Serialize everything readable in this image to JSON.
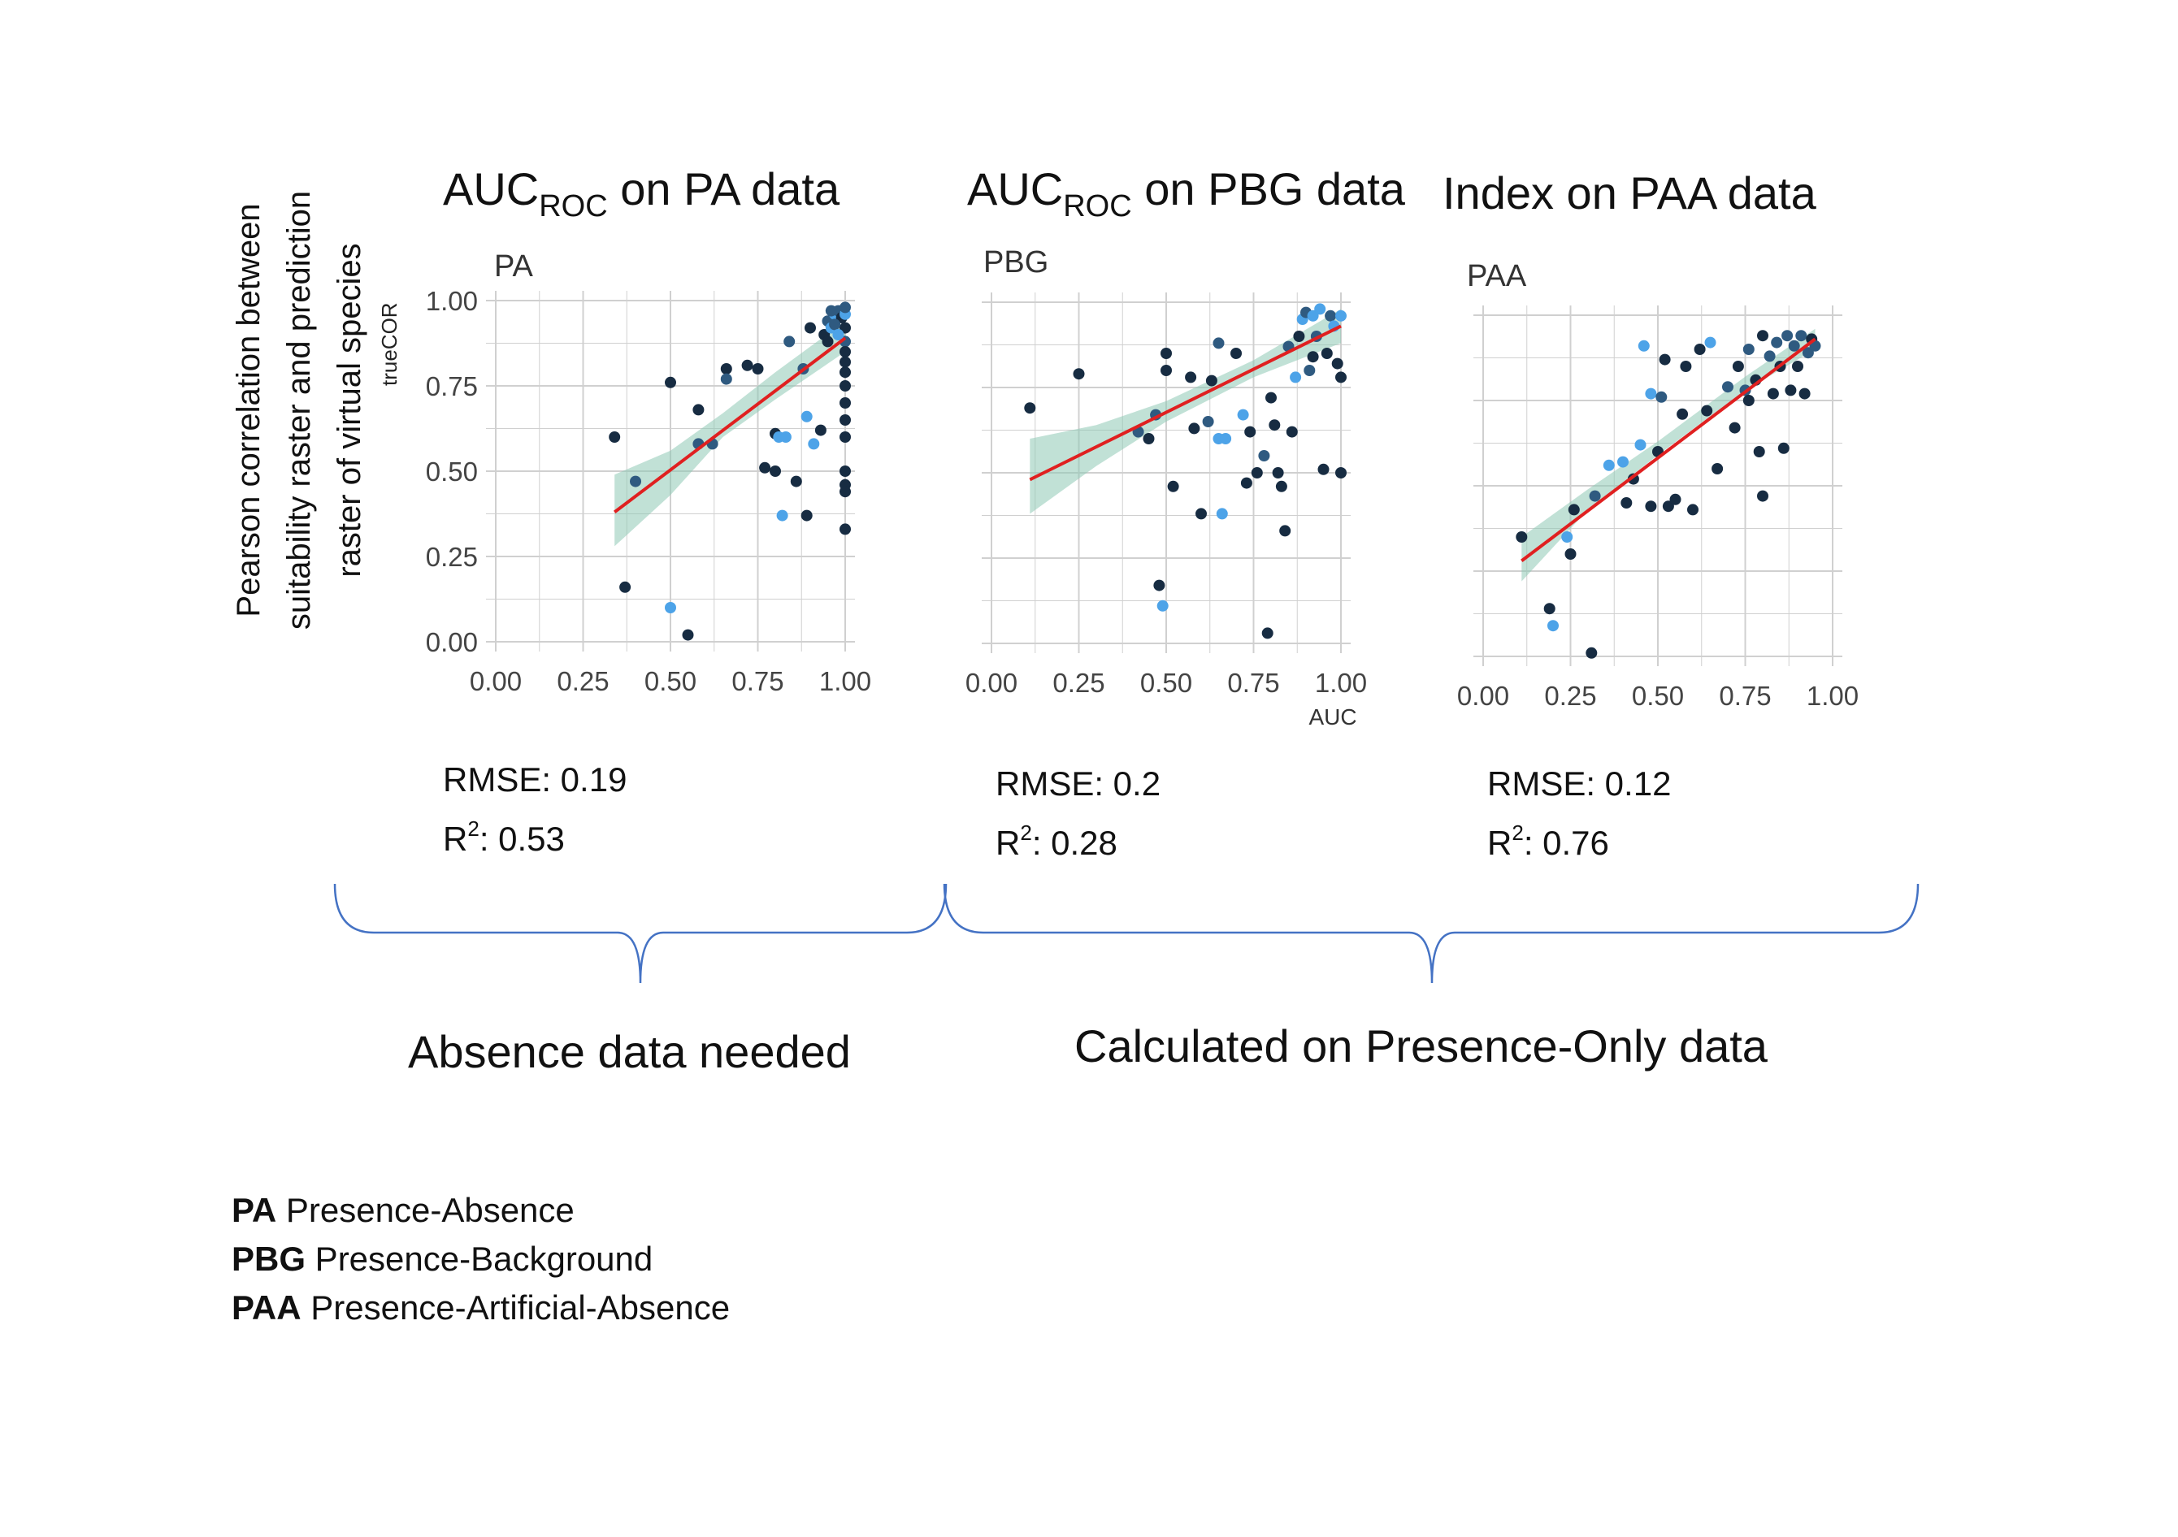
{
  "headings": [
    {
      "main": "AUC",
      "sub": "ROC",
      "rest": " on PA data"
    },
    {
      "main": "AUC",
      "sub": "ROC",
      "rest": " on PBG data"
    },
    {
      "main": "Index on PAA data",
      "sub": "",
      "rest": ""
    }
  ],
  "y_axis_title": {
    "line1": "Pearson correlation between",
    "line2": "suitability raster and prediction",
    "line3": "raster of virtual species"
  },
  "stats": [
    {
      "rmse": "RMSE: 0.19",
      "r2_prefix": "R",
      "r2_sup": "2",
      "r2_rest": ": 0.53"
    },
    {
      "rmse": "RMSE: 0.2",
      "r2_prefix": "R",
      "r2_sup": "2",
      "r2_rest": ": 0.28"
    },
    {
      "rmse": "RMSE: 0.12",
      "r2_prefix": "R",
      "r2_sup": "2",
      "r2_rest": ": 0.76"
    }
  ],
  "groups": [
    {
      "label": "Absence data needed"
    },
    {
      "label": "Calculated on Presence-Only data"
    }
  ],
  "legend": [
    {
      "abbr": "PA",
      "desc": " Presence-Absence"
    },
    {
      "abbr": "PBG",
      "desc": " Presence-Background"
    },
    {
      "abbr": "PAA",
      "desc": " Presence-Artificial-Absence"
    }
  ],
  "colors": {
    "grid": "#d0d0d0",
    "fit": "#e02020",
    "band": "#8ec8b4",
    "dark": "#172c42",
    "mid": "#2f5a80",
    "light": "#4da3e8",
    "brace": "#4472c4",
    "tick": "#444444"
  },
  "chart_data": [
    {
      "type": "scatter",
      "title": "PA",
      "xlabel": "",
      "ylabel": "trueCOR",
      "xlim": [
        0,
        1
      ],
      "ylim": [
        0,
        1
      ],
      "xticks": [
        "0.00",
        "0.25",
        "0.50",
        "0.75",
        "1.00"
      ],
      "yticks": [
        "0.00",
        "0.25",
        "0.50",
        "0.75",
        "1.00"
      ],
      "grid": true,
      "show_y_tick_labels": true,
      "fit": {
        "x": [
          0.34,
          1.0
        ],
        "y": [
          0.38,
          0.89
        ]
      },
      "band": [
        [
          0.34,
          0.28,
          0.49
        ],
        [
          0.5,
          0.43,
          0.56
        ],
        [
          0.65,
          0.6,
          0.67
        ],
        [
          0.8,
          0.71,
          0.79
        ],
        [
          1.0,
          0.85,
          0.94
        ]
      ],
      "points": [
        [
          0.34,
          0.6,
          0
        ],
        [
          0.37,
          0.16,
          0
        ],
        [
          0.4,
          0.47,
          1
        ],
        [
          0.5,
          0.76,
          0
        ],
        [
          0.5,
          0.1,
          2
        ],
        [
          0.55,
          0.02,
          0
        ],
        [
          0.58,
          0.58,
          1
        ],
        [
          0.58,
          0.68,
          0
        ],
        [
          0.62,
          0.58,
          1
        ],
        [
          0.66,
          0.8,
          0
        ],
        [
          0.66,
          0.77,
          1
        ],
        [
          0.72,
          0.81,
          0
        ],
        [
          0.75,
          0.8,
          0
        ],
        [
          0.77,
          0.51,
          0
        ],
        [
          0.8,
          0.61,
          0
        ],
        [
          0.8,
          0.5,
          0
        ],
        [
          0.81,
          0.6,
          2
        ],
        [
          0.82,
          0.37,
          2
        ],
        [
          0.83,
          0.6,
          2
        ],
        [
          0.84,
          0.88,
          1
        ],
        [
          0.86,
          0.47,
          0
        ],
        [
          0.88,
          0.8,
          1
        ],
        [
          0.89,
          0.66,
          2
        ],
        [
          0.89,
          0.37,
          0
        ],
        [
          0.9,
          0.92,
          0
        ],
        [
          0.91,
          0.58,
          2
        ],
        [
          0.93,
          0.62,
          0
        ],
        [
          0.94,
          0.9,
          0
        ],
        [
          0.95,
          0.94,
          1
        ],
        [
          0.96,
          0.92,
          2
        ],
        [
          0.97,
          0.96,
          2
        ],
        [
          0.98,
          0.97,
          1
        ],
        [
          0.99,
          0.95,
          0
        ],
        [
          1.0,
          0.96,
          2
        ],
        [
          1.0,
          0.98,
          1
        ],
        [
          1.0,
          0.92,
          0
        ],
        [
          1.0,
          0.88,
          1
        ],
        [
          1.0,
          0.85,
          0
        ],
        [
          1.0,
          0.82,
          0
        ],
        [
          1.0,
          0.79,
          0
        ],
        [
          1.0,
          0.75,
          0
        ],
        [
          1.0,
          0.7,
          0
        ],
        [
          1.0,
          0.65,
          0
        ],
        [
          1.0,
          0.6,
          0
        ],
        [
          1.0,
          0.5,
          0
        ],
        [
          1.0,
          0.46,
          0
        ],
        [
          1.0,
          0.44,
          0
        ],
        [
          1.0,
          0.33,
          0
        ],
        [
          0.97,
          0.93,
          1
        ],
        [
          0.98,
          0.9,
          2
        ],
        [
          0.96,
          0.97,
          1
        ],
        [
          0.95,
          0.88,
          0
        ]
      ]
    },
    {
      "type": "scatter",
      "title": "PBG",
      "xlabel": "AUC",
      "ylabel": "",
      "xlim": [
        0,
        1
      ],
      "ylim": [
        0,
        1
      ],
      "xticks": [
        "0.00",
        "0.25",
        "0.50",
        "0.75",
        "1.00"
      ],
      "yticks": [
        "0.00",
        "0.25",
        "0.50",
        "0.75",
        "1.00"
      ],
      "grid": true,
      "show_y_tick_labels": false,
      "fit": {
        "x": [
          0.11,
          1.0
        ],
        "y": [
          0.48,
          0.93
        ]
      },
      "band": [
        [
          0.11,
          0.38,
          0.6
        ],
        [
          0.3,
          0.52,
          0.64
        ],
        [
          0.5,
          0.65,
          0.71
        ],
        [
          0.75,
          0.78,
          0.83
        ],
        [
          1.0,
          0.88,
          0.98
        ]
      ],
      "points": [
        [
          0.11,
          0.69,
          0
        ],
        [
          0.25,
          0.79,
          0
        ],
        [
          0.42,
          0.62,
          1
        ],
        [
          0.45,
          0.6,
          0
        ],
        [
          0.47,
          0.67,
          1
        ],
        [
          0.48,
          0.17,
          0
        ],
        [
          0.49,
          0.11,
          2
        ],
        [
          0.5,
          0.85,
          0
        ],
        [
          0.5,
          0.8,
          0
        ],
        [
          0.52,
          0.46,
          0
        ],
        [
          0.57,
          0.78,
          0
        ],
        [
          0.58,
          0.63,
          0
        ],
        [
          0.6,
          0.38,
          0
        ],
        [
          0.62,
          0.65,
          1
        ],
        [
          0.63,
          0.77,
          0
        ],
        [
          0.65,
          0.88,
          1
        ],
        [
          0.65,
          0.6,
          2
        ],
        [
          0.66,
          0.38,
          2
        ],
        [
          0.67,
          0.6,
          2
        ],
        [
          0.7,
          0.85,
          0
        ],
        [
          0.72,
          0.67,
          2
        ],
        [
          0.73,
          0.47,
          0
        ],
        [
          0.74,
          0.62,
          0
        ],
        [
          0.76,
          0.5,
          0
        ],
        [
          0.78,
          0.55,
          1
        ],
        [
          0.79,
          0.03,
          0
        ],
        [
          0.8,
          0.72,
          0
        ],
        [
          0.81,
          0.64,
          0
        ],
        [
          0.82,
          0.5,
          0
        ],
        [
          0.83,
          0.46,
          0
        ],
        [
          0.84,
          0.33,
          0
        ],
        [
          0.85,
          0.87,
          1
        ],
        [
          0.86,
          0.62,
          0
        ],
        [
          0.87,
          0.78,
          2
        ],
        [
          0.89,
          0.95,
          2
        ],
        [
          0.9,
          0.97,
          1
        ],
        [
          0.91,
          0.8,
          1
        ],
        [
          0.92,
          0.96,
          2
        ],
        [
          0.93,
          0.9,
          1
        ],
        [
          0.94,
          0.98,
          2
        ],
        [
          0.95,
          0.51,
          0
        ],
        [
          0.96,
          0.85,
          0
        ],
        [
          0.97,
          0.96,
          1
        ],
        [
          0.98,
          0.93,
          2
        ],
        [
          0.99,
          0.82,
          0
        ],
        [
          1.0,
          0.78,
          0
        ],
        [
          1.0,
          0.5,
          0
        ],
        [
          1.0,
          0.96,
          2
        ],
        [
          0.88,
          0.9,
          0
        ],
        [
          0.92,
          0.84,
          0
        ]
      ]
    },
    {
      "type": "scatter",
      "title": "PAA",
      "xlabel": "",
      "ylabel": "",
      "xlim": [
        0,
        1
      ],
      "ylim": [
        0,
        1
      ],
      "xticks": [
        "0.00",
        "0.25",
        "0.50",
        "0.75",
        "1.00"
      ],
      "yticks": [
        "0.00",
        "0.25",
        "0.50",
        "0.75",
        "1.00"
      ],
      "grid": true,
      "show_y_tick_labels": false,
      "fit": {
        "x": [
          0.11,
          0.95
        ],
        "y": [
          0.28,
          0.93
        ]
      },
      "band": [
        [
          0.11,
          0.22,
          0.35
        ],
        [
          0.3,
          0.43,
          0.49
        ],
        [
          0.5,
          0.59,
          0.63
        ],
        [
          0.75,
          0.78,
          0.82
        ],
        [
          0.95,
          0.9,
          0.96
        ]
      ],
      "points": [
        [
          0.11,
          0.35,
          0
        ],
        [
          0.19,
          0.14,
          0
        ],
        [
          0.2,
          0.09,
          2
        ],
        [
          0.24,
          0.35,
          2
        ],
        [
          0.25,
          0.3,
          0
        ],
        [
          0.26,
          0.43,
          0
        ],
        [
          0.31,
          0.01,
          0
        ],
        [
          0.32,
          0.47,
          1
        ],
        [
          0.36,
          0.56,
          2
        ],
        [
          0.4,
          0.57,
          2
        ],
        [
          0.41,
          0.45,
          0
        ],
        [
          0.43,
          0.52,
          0
        ],
        [
          0.45,
          0.62,
          2
        ],
        [
          0.46,
          0.91,
          2
        ],
        [
          0.48,
          0.77,
          2
        ],
        [
          0.48,
          0.44,
          0
        ],
        [
          0.5,
          0.6,
          0
        ],
        [
          0.51,
          0.76,
          1
        ],
        [
          0.52,
          0.87,
          0
        ],
        [
          0.53,
          0.44,
          0
        ],
        [
          0.55,
          0.46,
          0
        ],
        [
          0.57,
          0.71,
          0
        ],
        [
          0.58,
          0.85,
          0
        ],
        [
          0.6,
          0.43,
          0
        ],
        [
          0.62,
          0.9,
          0
        ],
        [
          0.64,
          0.72,
          0
        ],
        [
          0.65,
          0.92,
          2
        ],
        [
          0.67,
          0.55,
          0
        ],
        [
          0.7,
          0.79,
          1
        ],
        [
          0.72,
          0.67,
          0
        ],
        [
          0.73,
          0.85,
          0
        ],
        [
          0.75,
          0.78,
          1
        ],
        [
          0.76,
          0.9,
          1
        ],
        [
          0.78,
          0.81,
          0
        ],
        [
          0.79,
          0.6,
          0
        ],
        [
          0.8,
          0.47,
          0
        ],
        [
          0.82,
          0.88,
          1
        ],
        [
          0.83,
          0.77,
          0
        ],
        [
          0.84,
          0.92,
          1
        ],
        [
          0.85,
          0.85,
          0
        ],
        [
          0.86,
          0.61,
          0
        ],
        [
          0.87,
          0.94,
          1
        ],
        [
          0.88,
          0.78,
          0
        ],
        [
          0.89,
          0.91,
          1
        ],
        [
          0.9,
          0.85,
          0
        ],
        [
          0.91,
          0.94,
          1
        ],
        [
          0.92,
          0.77,
          0
        ],
        [
          0.93,
          0.89,
          1
        ],
        [
          0.94,
          0.93,
          0
        ],
        [
          0.95,
          0.91,
          1
        ],
        [
          0.76,
          0.75,
          0
        ],
        [
          0.8,
          0.94,
          0
        ]
      ]
    }
  ]
}
